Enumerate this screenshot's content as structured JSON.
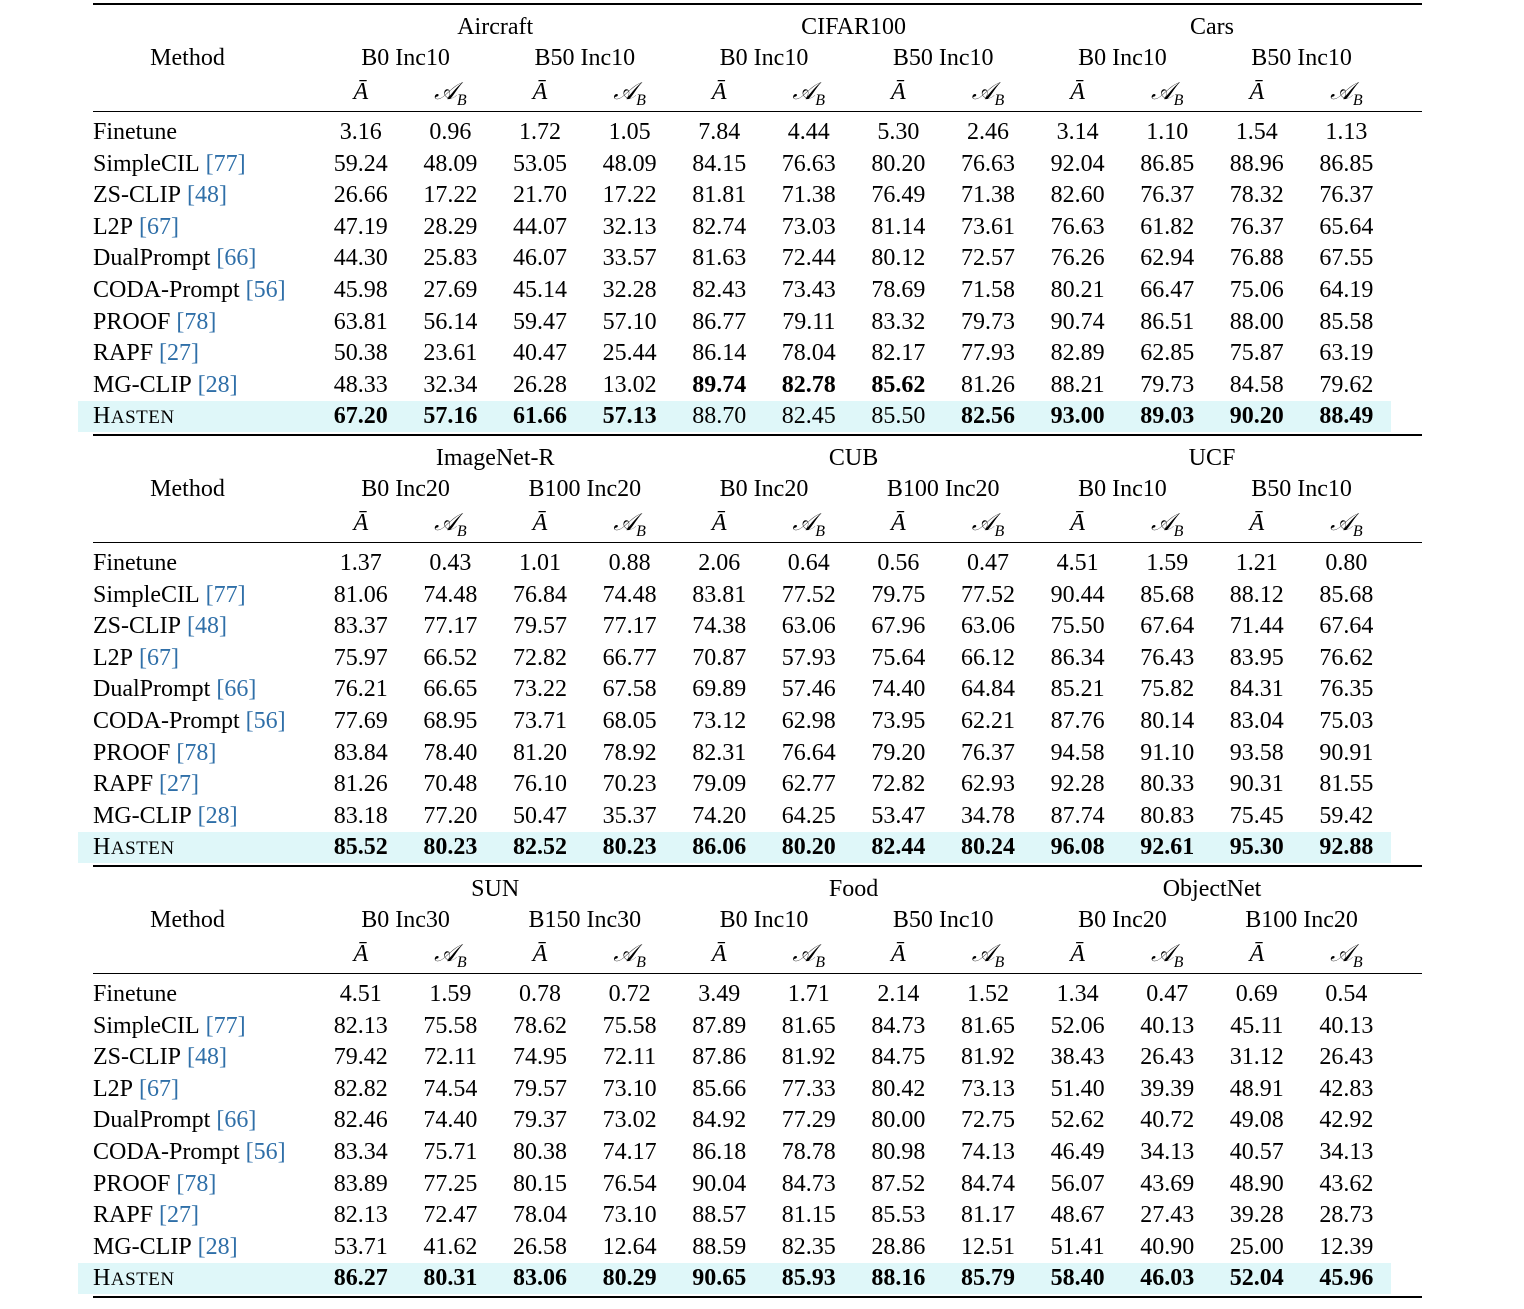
{
  "method_header": "Method",
  "metrics": [
    {
      "symbol": "Ā"
    },
    {
      "symbol": "𝒜",
      "sub": "B"
    }
  ],
  "tables": [
    {
      "datasets": [
        {
          "name": "Aircraft",
          "settings": [
            "B0 Inc10",
            "B50 Inc10"
          ]
        },
        {
          "name": "CIFAR100",
          "settings": [
            "B0 Inc10",
            "B50 Inc10"
          ]
        },
        {
          "name": "Cars",
          "settings": [
            "B0 Inc10",
            "B50 Inc10"
          ]
        }
      ],
      "rows": [
        {
          "method": "Finetune",
          "values": [
            "3.16",
            "0.96",
            "1.72",
            "1.05",
            "7.84",
            "4.44",
            "5.30",
            "2.46",
            "3.14",
            "1.10",
            "1.54",
            "1.13"
          ]
        },
        {
          "method": "SimpleCIL",
          "cite": "[77]",
          "values": [
            "59.24",
            "48.09",
            "53.05",
            "48.09",
            "84.15",
            "76.63",
            "80.20",
            "76.63",
            "92.04",
            "86.85",
            "88.96",
            "86.85"
          ]
        },
        {
          "method": "ZS-CLIP",
          "cite": "[48]",
          "values": [
            "26.66",
            "17.22",
            "21.70",
            "17.22",
            "81.81",
            "71.38",
            "76.49",
            "71.38",
            "82.60",
            "76.37",
            "78.32",
            "76.37"
          ]
        },
        {
          "method": "L2P",
          "cite": "[67]",
          "values": [
            "47.19",
            "28.29",
            "44.07",
            "32.13",
            "82.74",
            "73.03",
            "81.14",
            "73.61",
            "76.63",
            "61.82",
            "76.37",
            "65.64"
          ]
        },
        {
          "method": "DualPrompt",
          "cite": "[66]",
          "values": [
            "44.30",
            "25.83",
            "46.07",
            "33.57",
            "81.63",
            "72.44",
            "80.12",
            "72.57",
            "76.26",
            "62.94",
            "76.88",
            "67.55"
          ]
        },
        {
          "method": "CODA-Prompt",
          "cite": "[56]",
          "values": [
            "45.98",
            "27.69",
            "45.14",
            "32.28",
            "82.43",
            "73.43",
            "78.69",
            "71.58",
            "80.21",
            "66.47",
            "75.06",
            "64.19"
          ]
        },
        {
          "method": "PROOF",
          "cite": "[78]",
          "values": [
            "63.81",
            "56.14",
            "59.47",
            "57.10",
            "86.77",
            "79.11",
            "83.32",
            "79.73",
            "90.74",
            "86.51",
            "88.00",
            "85.58"
          ]
        },
        {
          "method": "RAPF",
          "cite": "[27]",
          "values": [
            "50.38",
            "23.61",
            "40.47",
            "25.44",
            "86.14",
            "78.04",
            "82.17",
            "77.93",
            "82.89",
            "62.85",
            "75.87",
            "63.19"
          ]
        },
        {
          "method": "MG-CLIP",
          "cite": "[28]",
          "values": [
            "48.33",
            "32.34",
            "26.28",
            "13.02",
            "89.74",
            "82.78",
            "85.62",
            "81.26",
            "88.21",
            "79.73",
            "84.58",
            "79.62"
          ],
          "bold": [
            4,
            5,
            6
          ]
        },
        {
          "method": "HASTEN",
          "values": [
            "67.20",
            "57.16",
            "61.66",
            "57.13",
            "88.70",
            "82.45",
            "85.50",
            "82.56",
            "93.00",
            "89.03",
            "90.20",
            "88.49"
          ],
          "bold": [
            0,
            1,
            2,
            3,
            7,
            8,
            9,
            10,
            11
          ],
          "highlight": true
        }
      ]
    },
    {
      "datasets": [
        {
          "name": "ImageNet-R",
          "settings": [
            "B0 Inc20",
            "B100 Inc20"
          ]
        },
        {
          "name": "CUB",
          "settings": [
            "B0 Inc20",
            "B100 Inc20"
          ]
        },
        {
          "name": "UCF",
          "settings": [
            "B0 Inc10",
            "B50 Inc10"
          ]
        }
      ],
      "rows": [
        {
          "method": "Finetune",
          "values": [
            "1.37",
            "0.43",
            "1.01",
            "0.88",
            "2.06",
            "0.64",
            "0.56",
            "0.47",
            "4.51",
            "1.59",
            "1.21",
            "0.80"
          ]
        },
        {
          "method": "SimpleCIL",
          "cite": "[77]",
          "values": [
            "81.06",
            "74.48",
            "76.84",
            "74.48",
            "83.81",
            "77.52",
            "79.75",
            "77.52",
            "90.44",
            "85.68",
            "88.12",
            "85.68"
          ]
        },
        {
          "method": "ZS-CLIP",
          "cite": "[48]",
          "values": [
            "83.37",
            "77.17",
            "79.57",
            "77.17",
            "74.38",
            "63.06",
            "67.96",
            "63.06",
            "75.50",
            "67.64",
            "71.44",
            "67.64"
          ]
        },
        {
          "method": "L2P",
          "cite": "[67]",
          "values": [
            "75.97",
            "66.52",
            "72.82",
            "66.77",
            "70.87",
            "57.93",
            "75.64",
            "66.12",
            "86.34",
            "76.43",
            "83.95",
            "76.62"
          ]
        },
        {
          "method": "DualPrompt",
          "cite": "[66]",
          "values": [
            "76.21",
            "66.65",
            "73.22",
            "67.58",
            "69.89",
            "57.46",
            "74.40",
            "64.84",
            "85.21",
            "75.82",
            "84.31",
            "76.35"
          ]
        },
        {
          "method": "CODA-Prompt",
          "cite": "[56]",
          "values": [
            "77.69",
            "68.95",
            "73.71",
            "68.05",
            "73.12",
            "62.98",
            "73.95",
            "62.21",
            "87.76",
            "80.14",
            "83.04",
            "75.03"
          ]
        },
        {
          "method": "PROOF",
          "cite": "[78]",
          "values": [
            "83.84",
            "78.40",
            "81.20",
            "78.92",
            "82.31",
            "76.64",
            "79.20",
            "76.37",
            "94.58",
            "91.10",
            "93.58",
            "90.91"
          ]
        },
        {
          "method": "RAPF",
          "cite": "[27]",
          "values": [
            "81.26",
            "70.48",
            "76.10",
            "70.23",
            "79.09",
            "62.77",
            "72.82",
            "62.93",
            "92.28",
            "80.33",
            "90.31",
            "81.55"
          ]
        },
        {
          "method": "MG-CLIP",
          "cite": "[28]",
          "values": [
            "83.18",
            "77.20",
            "50.47",
            "35.37",
            "74.20",
            "64.25",
            "53.47",
            "34.78",
            "87.74",
            "80.83",
            "75.45",
            "59.42"
          ]
        },
        {
          "method": "HASTEN",
          "values": [
            "85.52",
            "80.23",
            "82.52",
            "80.23",
            "86.06",
            "80.20",
            "82.44",
            "80.24",
            "96.08",
            "92.61",
            "95.30",
            "92.88"
          ],
          "bold": [
            0,
            1,
            2,
            3,
            4,
            5,
            6,
            7,
            8,
            9,
            10,
            11
          ],
          "highlight": true
        }
      ]
    },
    {
      "datasets": [
        {
          "name": "SUN",
          "settings": [
            "B0 Inc30",
            "B150 Inc30"
          ]
        },
        {
          "name": "Food",
          "settings": [
            "B0 Inc10",
            "B50 Inc10"
          ]
        },
        {
          "name": "ObjectNet",
          "settings": [
            "B0 Inc20",
            "B100 Inc20"
          ]
        }
      ],
      "rows": [
        {
          "method": "Finetune",
          "values": [
            "4.51",
            "1.59",
            "0.78",
            "0.72",
            "3.49",
            "1.71",
            "2.14",
            "1.52",
            "1.34",
            "0.47",
            "0.69",
            "0.54"
          ]
        },
        {
          "method": "SimpleCIL",
          "cite": "[77]",
          "values": [
            "82.13",
            "75.58",
            "78.62",
            "75.58",
            "87.89",
            "81.65",
            "84.73",
            "81.65",
            "52.06",
            "40.13",
            "45.11",
            "40.13"
          ]
        },
        {
          "method": "ZS-CLIP",
          "cite": "[48]",
          "values": [
            "79.42",
            "72.11",
            "74.95",
            "72.11",
            "87.86",
            "81.92",
            "84.75",
            "81.92",
            "38.43",
            "26.43",
            "31.12",
            "26.43"
          ]
        },
        {
          "method": "L2P",
          "cite": "[67]",
          "values": [
            "82.82",
            "74.54",
            "79.57",
            "73.10",
            "85.66",
            "77.33",
            "80.42",
            "73.13",
            "51.40",
            "39.39",
            "48.91",
            "42.83"
          ]
        },
        {
          "method": "DualPrompt",
          "cite": "[66]",
          "values": [
            "82.46",
            "74.40",
            "79.37",
            "73.02",
            "84.92",
            "77.29",
            "80.00",
            "72.75",
            "52.62",
            "40.72",
            "49.08",
            "42.92"
          ]
        },
        {
          "method": "CODA-Prompt",
          "cite": "[56]",
          "values": [
            "83.34",
            "75.71",
            "80.38",
            "74.17",
            "86.18",
            "78.78",
            "80.98",
            "74.13",
            "46.49",
            "34.13",
            "40.57",
            "34.13"
          ]
        },
        {
          "method": "PROOF",
          "cite": "[78]",
          "values": [
            "83.89",
            "77.25",
            "80.15",
            "76.54",
            "90.04",
            "84.73",
            "87.52",
            "84.74",
            "56.07",
            "43.69",
            "48.90",
            "43.62"
          ]
        },
        {
          "method": "RAPF",
          "cite": "[27]",
          "values": [
            "82.13",
            "72.47",
            "78.04",
            "73.10",
            "88.57",
            "81.15",
            "85.53",
            "81.17",
            "48.67",
            "27.43",
            "39.28",
            "28.73"
          ]
        },
        {
          "method": "MG-CLIP",
          "cite": "[28]",
          "values": [
            "53.71",
            "41.62",
            "26.58",
            "12.64",
            "88.59",
            "82.35",
            "28.86",
            "12.51",
            "51.41",
            "40.90",
            "25.00",
            "12.39"
          ]
        },
        {
          "method": "HASTEN",
          "values": [
            "86.27",
            "80.31",
            "83.06",
            "80.29",
            "90.65",
            "85.93",
            "88.16",
            "85.79",
            "58.40",
            "46.03",
            "52.04",
            "45.96"
          ],
          "bold": [
            0,
            1,
            2,
            3,
            4,
            5,
            6,
            7,
            8,
            9,
            10,
            11
          ],
          "highlight": true
        }
      ]
    }
  ]
}
